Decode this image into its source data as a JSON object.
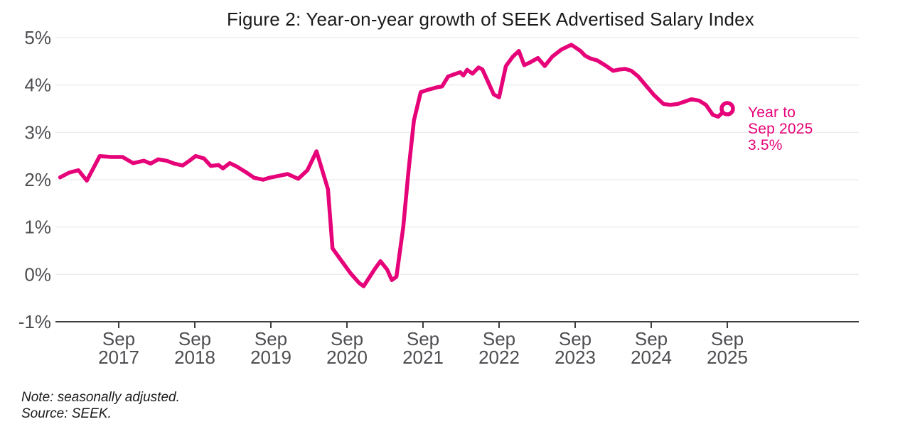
{
  "figure": {
    "title": "Figure 2: Year-on-year growth of SEEK Advertised Salary Index",
    "note": "Note: seasonally adjusted.",
    "source": "Source: SEEK.",
    "annotation": {
      "lines": [
        "Year to",
        "Sep 2025",
        "3.5%"
      ]
    }
  },
  "colors": {
    "line": "#e60278",
    "annotation": "#e60278",
    "grid": "#ededed",
    "axis": "#3f3f41",
    "label": "#4e4e52",
    "title": "#1a1a1a",
    "background": "#ffffff"
  },
  "chart_data": {
    "type": "line",
    "title": "Figure 2: Year-on-year growth of SEEK Advertised Salary Index",
    "xlabel": "",
    "ylabel": "",
    "unit": "%",
    "ylim": [
      -1,
      5
    ],
    "xlim": [
      2016.9,
      2026.5
    ],
    "grid": "horizontal",
    "legend": "none",
    "latest": {
      "label": "Year to Sep 2025",
      "value": 3.5
    },
    "y_ticks": [
      {
        "value": 5,
        "label": "5%"
      },
      {
        "value": 4,
        "label": "4%"
      },
      {
        "value": 3,
        "label": "3%"
      },
      {
        "value": 2,
        "label": "2%"
      },
      {
        "value": 1,
        "label": "1%"
      },
      {
        "value": 0,
        "label": "0%"
      },
      {
        "value": -1,
        "label": "-1%"
      }
    ],
    "x_ticks": [
      {
        "value": 2017.75,
        "top": "Sep",
        "bottom": "2017"
      },
      {
        "value": 2018.75,
        "top": "Sep",
        "bottom": "2018"
      },
      {
        "value": 2019.75,
        "top": "Sep",
        "bottom": "2019"
      },
      {
        "value": 2020.75,
        "top": "Sep",
        "bottom": "2020"
      },
      {
        "value": 2021.75,
        "top": "Sep",
        "bottom": "2021"
      },
      {
        "value": 2022.75,
        "top": "Sep",
        "bottom": "2022"
      },
      {
        "value": 2023.75,
        "top": "Sep",
        "bottom": "2023"
      },
      {
        "value": 2024.75,
        "top": "Sep",
        "bottom": "2024"
      },
      {
        "value": 2025.75,
        "top": "Sep",
        "bottom": "2025"
      }
    ],
    "series": [
      {
        "name": "Year-on-year growth of SEEK Advertised Salary Index",
        "points": [
          [
            2016.98,
            2.05
          ],
          [
            2017.1,
            2.15
          ],
          [
            2017.22,
            2.2
          ],
          [
            2017.33,
            1.98
          ],
          [
            2017.5,
            2.5
          ],
          [
            2017.65,
            2.48
          ],
          [
            2017.8,
            2.48
          ],
          [
            2017.94,
            2.35
          ],
          [
            2018.08,
            2.4
          ],
          [
            2018.17,
            2.34
          ],
          [
            2018.27,
            2.43
          ],
          [
            2018.38,
            2.4
          ],
          [
            2018.48,
            2.34
          ],
          [
            2018.59,
            2.3
          ],
          [
            2018.68,
            2.4
          ],
          [
            2018.76,
            2.5
          ],
          [
            2018.87,
            2.45
          ],
          [
            2018.96,
            2.29
          ],
          [
            2019.06,
            2.31
          ],
          [
            2019.12,
            2.24
          ],
          [
            2019.21,
            2.35
          ],
          [
            2019.3,
            2.28
          ],
          [
            2019.43,
            2.15
          ],
          [
            2019.53,
            2.04
          ],
          [
            2019.65,
            2.0
          ],
          [
            2019.73,
            2.04
          ],
          [
            2019.85,
            2.08
          ],
          [
            2019.97,
            2.12
          ],
          [
            2020.11,
            2.02
          ],
          [
            2020.23,
            2.2
          ],
          [
            2020.35,
            2.6
          ],
          [
            2020.5,
            1.8
          ],
          [
            2020.56,
            0.55
          ],
          [
            2020.65,
            0.35
          ],
          [
            2020.8,
            0.02
          ],
          [
            2020.91,
            -0.18
          ],
          [
            2020.97,
            -0.25
          ],
          [
            2021.11,
            0.1
          ],
          [
            2021.19,
            0.28
          ],
          [
            2021.28,
            0.1
          ],
          [
            2021.34,
            -0.12
          ],
          [
            2021.4,
            -0.05
          ],
          [
            2021.49,
            1.0
          ],
          [
            2021.56,
            2.2
          ],
          [
            2021.63,
            3.25
          ],
          [
            2021.72,
            3.85
          ],
          [
            2021.82,
            3.9
          ],
          [
            2021.93,
            3.95
          ],
          [
            2022.0,
            3.97
          ],
          [
            2022.08,
            4.18
          ],
          [
            2022.15,
            4.22
          ],
          [
            2022.24,
            4.27
          ],
          [
            2022.28,
            4.2
          ],
          [
            2022.33,
            4.32
          ],
          [
            2022.4,
            4.24
          ],
          [
            2022.48,
            4.37
          ],
          [
            2022.53,
            4.33
          ],
          [
            2022.59,
            4.12
          ],
          [
            2022.68,
            3.8
          ],
          [
            2022.75,
            3.74
          ],
          [
            2022.84,
            4.4
          ],
          [
            2022.93,
            4.6
          ],
          [
            2023.01,
            4.72
          ],
          [
            2023.08,
            4.42
          ],
          [
            2023.15,
            4.47
          ],
          [
            2023.26,
            4.57
          ],
          [
            2023.35,
            4.4
          ],
          [
            2023.45,
            4.6
          ],
          [
            2023.57,
            4.75
          ],
          [
            2023.7,
            4.85
          ],
          [
            2023.82,
            4.72
          ],
          [
            2023.88,
            4.62
          ],
          [
            2023.95,
            4.56
          ],
          [
            2024.04,
            4.52
          ],
          [
            2024.16,
            4.4
          ],
          [
            2024.25,
            4.3
          ],
          [
            2024.34,
            4.33
          ],
          [
            2024.41,
            4.34
          ],
          [
            2024.49,
            4.3
          ],
          [
            2024.58,
            4.18
          ],
          [
            2024.69,
            3.97
          ],
          [
            2024.79,
            3.78
          ],
          [
            2024.91,
            3.6
          ],
          [
            2025.0,
            3.58
          ],
          [
            2025.1,
            3.6
          ],
          [
            2025.19,
            3.65
          ],
          [
            2025.28,
            3.7
          ],
          [
            2025.38,
            3.67
          ],
          [
            2025.47,
            3.58
          ],
          [
            2025.56,
            3.37
          ],
          [
            2025.63,
            3.33
          ],
          [
            2025.69,
            3.42
          ],
          [
            2025.75,
            3.5
          ]
        ]
      }
    ]
  }
}
